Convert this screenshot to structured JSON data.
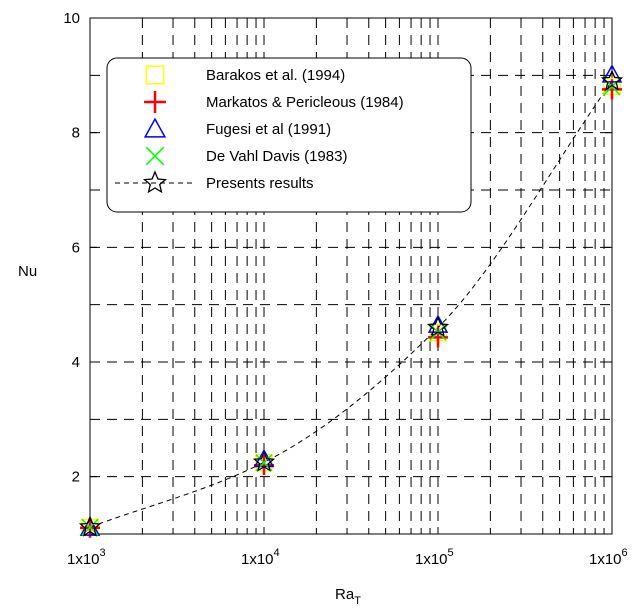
{
  "chart_data": {
    "type": "scatter",
    "xlabel": "Ra",
    "xlabel_sub": "T",
    "ylabel": "Nu",
    "xscale": "log",
    "xlim": [
      1000,
      1000000
    ],
    "ylim": [
      1,
      10
    ],
    "grid": true,
    "x_ticks": [
      {
        "value": 1000,
        "base": "1x10",
        "exp": "3"
      },
      {
        "value": 10000,
        "base": "1x10",
        "exp": "4"
      },
      {
        "value": 100000,
        "base": "1x10",
        "exp": "5"
      },
      {
        "value": 1000000,
        "base": "1x10",
        "exp": "6"
      }
    ],
    "y_ticks": [
      {
        "value": 2,
        "label": "2"
      },
      {
        "value": 4,
        "label": "4"
      },
      {
        "value": 6,
        "label": "6"
      },
      {
        "value": 8,
        "label": "8"
      },
      {
        "value": 10,
        "label": "10"
      }
    ],
    "legend_position": "top-left",
    "series": [
      {
        "name": "Barakos et al. (1994)",
        "marker": "square",
        "color": "#ffff00",
        "x": [
          1000,
          10000,
          100000,
          1000000
        ],
        "y": [
          1.114,
          2.245,
          4.51,
          8.806
        ]
      },
      {
        "name": "Markatos & Pericleous (1984)",
        "marker": "plus",
        "color": "#ff0000",
        "x": [
          1000,
          10000,
          100000,
          1000000
        ],
        "y": [
          1.108,
          2.201,
          4.43,
          8.754
        ]
      },
      {
        "name": "Fugesi et al (1991)",
        "marker": "triangle",
        "color": "#0000ff",
        "x": [
          1000,
          10000,
          100000,
          1000000
        ],
        "y": [
          1.106,
          2.302,
          4.646,
          9.012
        ]
      },
      {
        "name": "De Vahl Davis (1983)",
        "marker": "x",
        "color": "#00ff00",
        "x": [
          1000,
          10000,
          100000,
          1000000
        ],
        "y": [
          1.118,
          2.243,
          4.519,
          8.8
        ]
      },
      {
        "name": "Presents results",
        "marker": "star",
        "color": "#000000",
        "line": "dashed",
        "x": [
          1000,
          10000,
          100000,
          1000000
        ],
        "y": [
          1.12,
          2.25,
          4.6,
          8.9
        ]
      }
    ]
  }
}
